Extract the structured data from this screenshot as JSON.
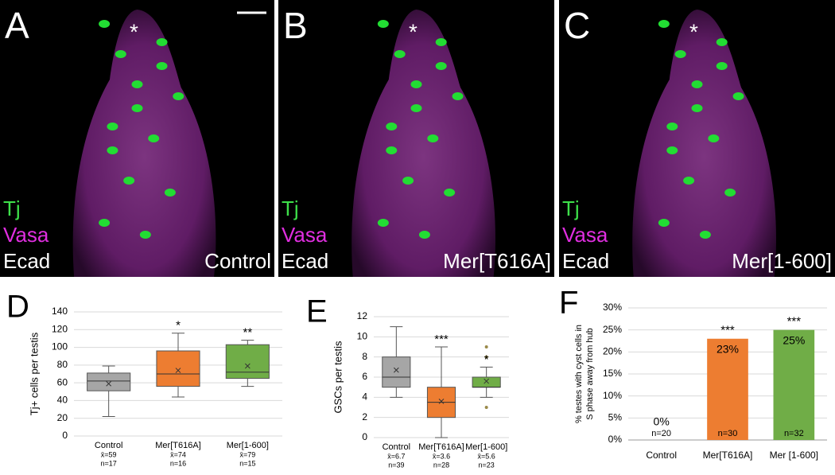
{
  "image_panels": [
    {
      "letter": "A",
      "stains": [
        "Tj",
        "Vasa",
        "Ecad"
      ],
      "genotype": "Control",
      "hub_marker": "*"
    },
    {
      "letter": "B",
      "stains": [
        "Tj",
        "Vasa",
        "Ecad"
      ],
      "genotype": "Mer[T616A]",
      "hub_marker": "*"
    },
    {
      "letter": "C",
      "stains": [
        "Tj",
        "Vasa",
        "Ecad"
      ],
      "genotype": "Mer[1-600]",
      "hub_marker": "*"
    }
  ],
  "chart_data": [
    {
      "type": "box",
      "letter": "D",
      "y_label": "Tj+ cells per testis",
      "ylim": [
        0,
        140
      ],
      "yticks": [
        0,
        20,
        40,
        60,
        80,
        100,
        120,
        140
      ],
      "grid": true,
      "boxes": [
        {
          "name": "Control",
          "color": "#a6a6a6",
          "min": 22,
          "q1": 51,
          "median": 62,
          "q3": 71,
          "max": 79,
          "mean": 59,
          "mean_label": "x̄=59",
          "n_label": "n=17",
          "significance": null,
          "outliers": []
        },
        {
          "name": "Mer[T616A]",
          "color": "#ed7d31",
          "min": 44,
          "q1": 56,
          "median": 70,
          "q3": 96,
          "max": 116,
          "mean": 74,
          "mean_label": "x̄=74",
          "n_label": "n=16",
          "significance": "*",
          "outliers": []
        },
        {
          "name": "Mer[1-600]",
          "color": "#70ad47",
          "min": 56,
          "q1": 65,
          "median": 72,
          "q3": 103,
          "max": 108,
          "mean": 79,
          "mean_label": "x̄=79",
          "n_label": "n=15",
          "significance": "**",
          "outliers": []
        }
      ]
    },
    {
      "type": "box",
      "letter": "E",
      "y_label": "GSCs per testis",
      "ylim": [
        0,
        12
      ],
      "yticks": [
        0,
        2,
        4,
        6,
        8,
        10,
        12
      ],
      "grid": true,
      "boxes": [
        {
          "name": "Control",
          "color": "#a6a6a6",
          "min": 4,
          "q1": 5,
          "median": 6,
          "q3": 8,
          "max": 11,
          "mean": 6.7,
          "mean_label": "x̄=6.7",
          "n_label": "n=39",
          "significance": null,
          "outliers": []
        },
        {
          "name": "Mer[T616A]",
          "color": "#ed7d31",
          "min": 0,
          "q1": 2,
          "median": 3.5,
          "q3": 5,
          "max": 9,
          "mean": 3.6,
          "mean_label": "x̄=3.6",
          "n_label": "n=28",
          "significance": "***",
          "outliers": []
        },
        {
          "name": "Mer[1-600]",
          "color": "#70ad47",
          "min": 4,
          "q1": 5,
          "median": 5,
          "q3": 6,
          "max": 7,
          "mean": 5.6,
          "mean_label": "x̄=5.6",
          "n_label": "n=23",
          "significance": "*",
          "outliers": [
            9,
            8,
            3
          ]
        }
      ]
    },
    {
      "type": "bar",
      "letter": "F",
      "y_label": [
        "% testes with cyst cells in",
        "S phase away from hub"
      ],
      "ylim": [
        0,
        30
      ],
      "yticks": [
        {
          "value": 0,
          "label": "0%"
        },
        {
          "value": 5,
          "label": "5%"
        },
        {
          "value": 10,
          "label": "10%"
        },
        {
          "value": 15,
          "label": "15%"
        },
        {
          "value": 20,
          "label": "20%"
        },
        {
          "value": 25,
          "label": "25%"
        },
        {
          "value": 30,
          "label": "30%"
        }
      ],
      "grid": true,
      "categories": [
        "Control",
        "Mer[T616A]",
        "Mer [1-600]"
      ],
      "values": [
        0,
        23,
        25
      ],
      "value_labels": [
        "0%",
        "23%",
        "25%"
      ],
      "n_labels": [
        "n=20",
        "n=30",
        "n=32"
      ],
      "significance": [
        null,
        "***",
        "***"
      ],
      "colors": [
        "#a6a6a6",
        "#ed7d31",
        "#70ad47"
      ]
    }
  ]
}
